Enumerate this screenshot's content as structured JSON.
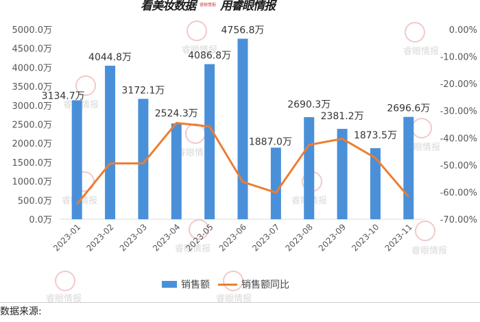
{
  "banner": {
    "left_text": "看美妆数据",
    "right_text": "用睿眼情报",
    "mini_text": "睿眼情报"
  },
  "watermark_text": "睿眼情报",
  "legend": {
    "bar_label": "销售额",
    "line_label": "销售额同比"
  },
  "footer": {
    "source_label": "数据来源:"
  },
  "colors": {
    "bar": "#4a90d9",
    "line": "#ed7d31",
    "axis_text": "#555555"
  },
  "chart_data": {
    "type": "bar+line",
    "title": "",
    "categories": [
      "2023-01",
      "2023-02",
      "2023-03",
      "2023-04",
      "2023-05",
      "2023-06",
      "2023-07",
      "2023-08",
      "2023-09",
      "2023-10",
      "2023-11"
    ],
    "series": [
      {
        "name": "销售额",
        "type": "bar",
        "axis": "left",
        "unit": "万",
        "values": [
          3134.7,
          4044.8,
          3172.1,
          2524.3,
          4086.8,
          4756.8,
          1887.0,
          2690.3,
          2381.2,
          1873.5,
          2696.6
        ],
        "labels": [
          "3134.7万",
          "4044.8万",
          "3172.1万",
          "2524.3万",
          "4086.8万",
          "4756.8万",
          "1887.0万",
          "2690.3万",
          "2381.2万",
          "1873.5万",
          "2696.6万"
        ]
      },
      {
        "name": "销售额同比",
        "type": "line",
        "axis": "right",
        "unit": "%",
        "values": [
          -64.5,
          -49.4,
          -49.4,
          -34.5,
          -35.8,
          -56.2,
          -60.2,
          -42.6,
          -40.3,
          -47.4,
          -61.7
        ]
      }
    ],
    "left_axis": {
      "ylim": [
        0,
        5000
      ],
      "ticks": [
        "0.0万",
        "500.0万",
        "1000.0万",
        "1500.0万",
        "2000.0万",
        "2500.0万",
        "3000.0万",
        "3500.0万",
        "4000.0万",
        "4500.0万",
        "5000.0万"
      ]
    },
    "right_axis": {
      "ylim": [
        -70,
        0
      ],
      "ticks": [
        "0.00%",
        "-10.00%",
        "-20.00%",
        "-30.00%",
        "-40.00%",
        "-50.00%",
        "-60.00%",
        "-70.00%"
      ]
    },
    "xlabel": "",
    "ylabel": "",
    "grid": false,
    "legend_position": "bottom"
  }
}
